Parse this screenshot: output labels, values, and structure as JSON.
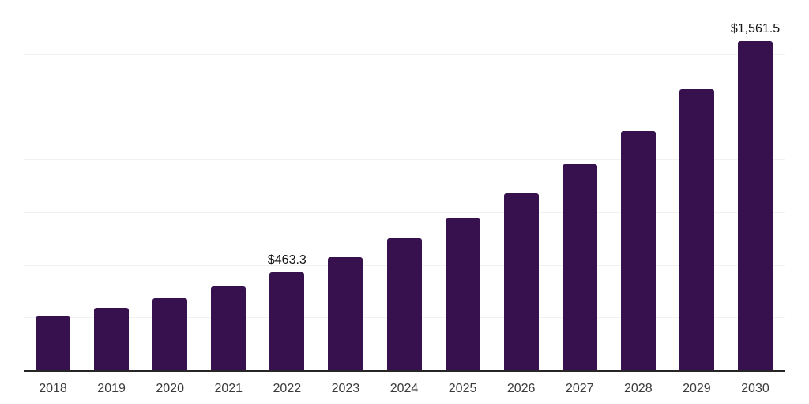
{
  "chart_data": {
    "type": "bar",
    "title": "",
    "xlabel": "",
    "ylabel": "",
    "categories": [
      "2018",
      "2019",
      "2020",
      "2021",
      "2022",
      "2023",
      "2024",
      "2025",
      "2026",
      "2027",
      "2028",
      "2029",
      "2030"
    ],
    "values": [
      253,
      295,
      342,
      399,
      463.3,
      536,
      624,
      722,
      840,
      978,
      1136,
      1333,
      1561.5
    ],
    "labeled_points": [
      {
        "category": "2022",
        "label": "$463.3"
      },
      {
        "category": "2030",
        "label": "$1,561.5"
      }
    ],
    "ylim": [
      0,
      1750
    ],
    "grid": "horizontal",
    "grid_step": 250,
    "y_axis_labels_visible": false,
    "legend_position": "none"
  },
  "colors": {
    "background": "#ffffff",
    "bar": "#36114E",
    "axis": "#262626",
    "gridline": "#f1f1f1",
    "tick_label": "#3a3a3a",
    "data_label": "#141414"
  }
}
